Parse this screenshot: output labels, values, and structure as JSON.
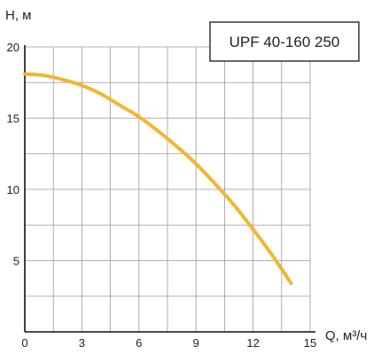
{
  "chart_data": {
    "type": "line",
    "title": "UPF 40-160 250",
    "xlabel": "Q, м³/ч",
    "ylabel": "H, м",
    "xlim": [
      0,
      15
    ],
    "ylim": [
      0,
      20
    ],
    "x_ticks": [
      "0",
      "3",
      "6",
      "9",
      "12",
      "15"
    ],
    "y_ticks": [
      "5",
      "10",
      "15",
      "20"
    ],
    "grid": true,
    "legend": "none",
    "series": [
      {
        "color": "#f2b632",
        "x": [
          0,
          1,
          2,
          3,
          4,
          5,
          6,
          7,
          8,
          9,
          10,
          11,
          12,
          13,
          14
        ],
        "y": [
          18.1,
          18.0,
          17.7,
          17.3,
          16.7,
          15.9,
          15.1,
          14.1,
          13.0,
          11.8,
          10.4,
          8.9,
          7.2,
          5.4,
          3.4
        ]
      }
    ]
  }
}
